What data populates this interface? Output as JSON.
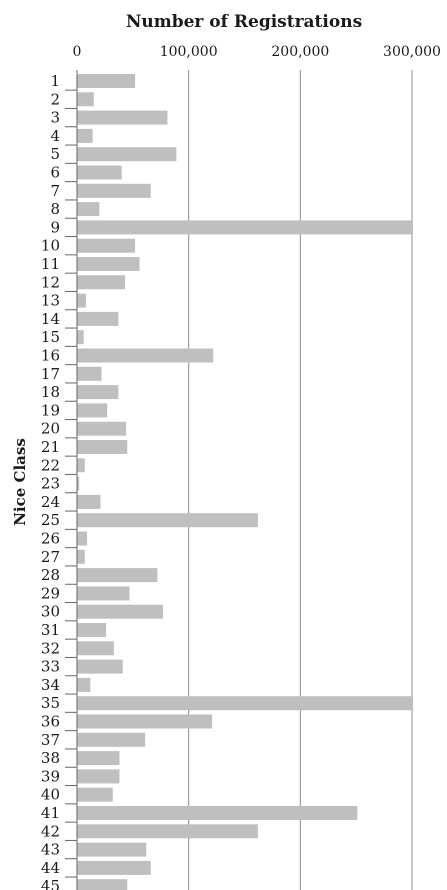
{
  "chart_data": {
    "type": "bar",
    "orientation": "horizontal",
    "title": "Number of Registrations",
    "xlabel": "Number of Registrations",
    "ylabel": "Nice Class",
    "x_axis_position": "top",
    "xlim": [
      0,
      300000
    ],
    "xticks": [
      0,
      100000,
      200000,
      300000
    ],
    "xtick_labels": [
      "0",
      "100,000",
      "200,000",
      "300,000"
    ],
    "grid": "vertical",
    "bar_color": "#bfbfbf",
    "categories": [
      "1",
      "2",
      "3",
      "4",
      "5",
      "6",
      "7",
      "8",
      "9",
      "10",
      "11",
      "12",
      "13",
      "14",
      "15",
      "16",
      "17",
      "18",
      "19",
      "20",
      "21",
      "22",
      "23",
      "24",
      "25",
      "26",
      "27",
      "28",
      "29",
      "30",
      "31",
      "32",
      "33",
      "34",
      "35",
      "36",
      "37",
      "38",
      "39",
      "40",
      "41",
      "42",
      "43",
      "44",
      "45"
    ],
    "values": [
      52000,
      15000,
      81000,
      14000,
      89000,
      40000,
      66000,
      20000,
      305000,
      52000,
      56000,
      43000,
      8000,
      37000,
      6000,
      122000,
      22000,
      37000,
      27000,
      44000,
      45000,
      7000,
      2000,
      21000,
      162000,
      9000,
      7000,
      72000,
      47000,
      77000,
      26000,
      33000,
      41000,
      12000,
      303000,
      121000,
      61000,
      38000,
      38000,
      32000,
      251000,
      162000,
      62000,
      66000,
      45000
    ]
  }
}
